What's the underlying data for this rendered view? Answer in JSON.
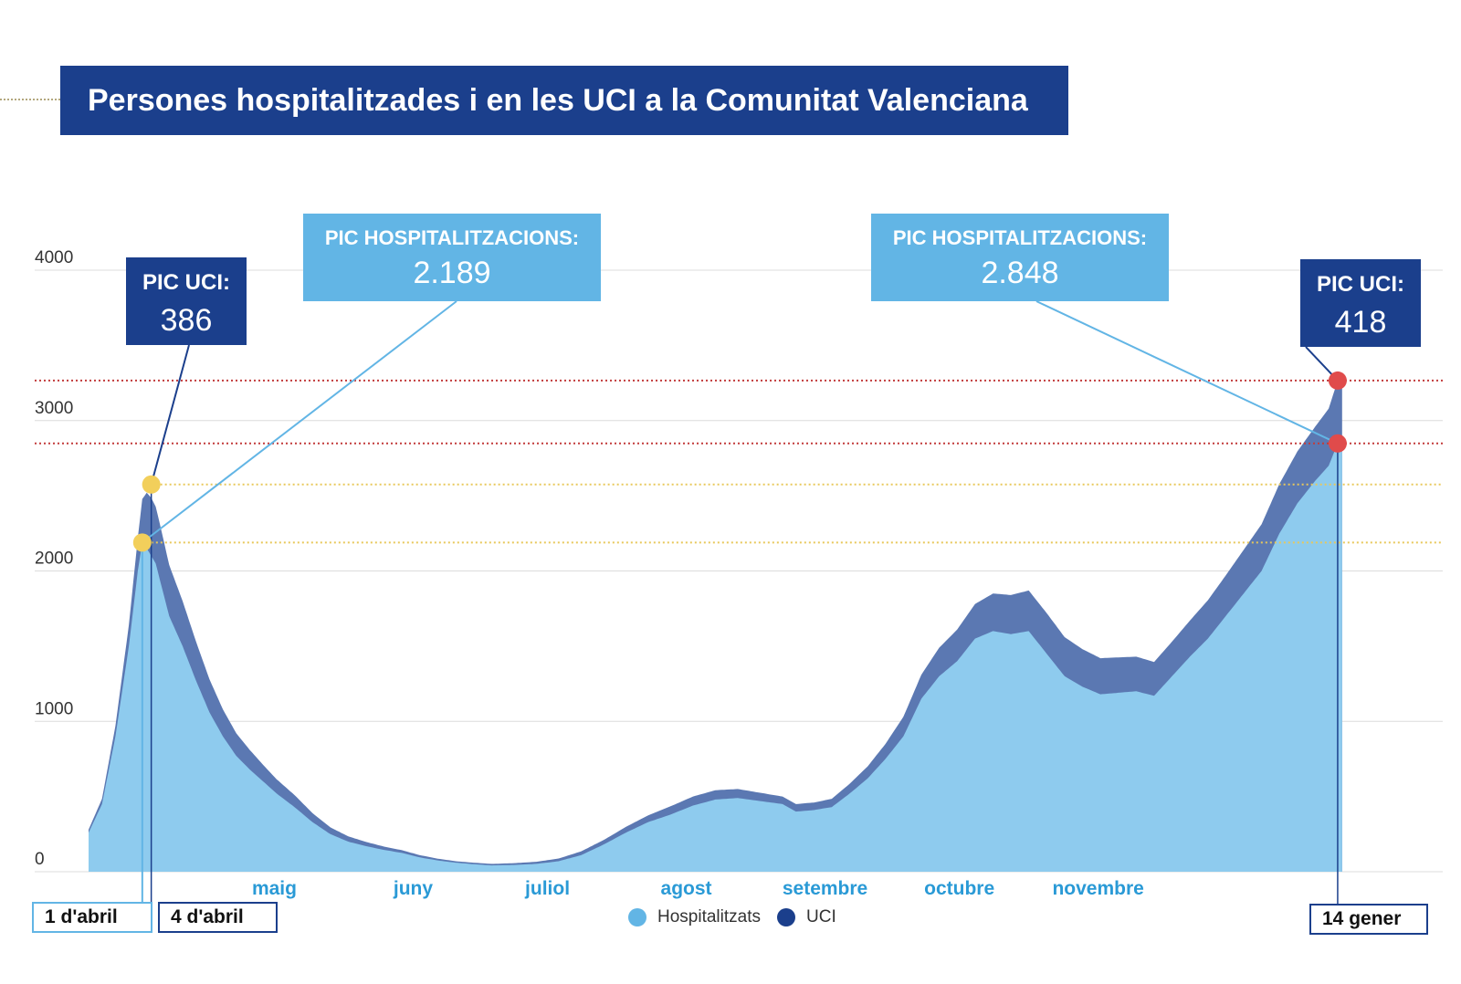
{
  "title": "Persones hospitalitzades i en les UCI a la Comunitat Valenciana",
  "colors": {
    "hospitalitzats": "#8ecbee",
    "uci": "#5b78b2",
    "title_bg": "#1b3f8c",
    "hosp_box": "#62b5e5",
    "peak_red": "#e04b4b",
    "peak_yellow": "#f2cf5b"
  },
  "chart_data": {
    "type": "area",
    "title": "Persones hospitalitzades i en les UCI a la Comunitat Valenciana",
    "ylim": [
      0,
      4000
    ],
    "yticks": [
      0,
      1000,
      2000,
      3000,
      4000
    ],
    "ytick_labels": [
      "0",
      "1000",
      "2000",
      "3000",
      "4000"
    ],
    "months": [
      "maig",
      "juny",
      "juliol",
      "agost",
      "setembre",
      "octubre",
      "novembre"
    ],
    "x_unit": "day index from 2020-03-21 (day 0) to 2021-01-14 (day 299)",
    "month_days": [
      41.5,
      72.5,
      102.5,
      133.5,
      164.5,
      194.5,
      225.5
    ],
    "series": [
      {
        "name": "Hospitalitzats",
        "color": "#8ecbee",
        "points": [
          [
            0,
            260
          ],
          [
            3,
            450
          ],
          [
            6,
            900
          ],
          [
            9,
            1500
          ],
          [
            11,
            2000
          ],
          [
            12,
            2189
          ],
          [
            13,
            2150
          ],
          [
            15,
            2050
          ],
          [
            18,
            1700
          ],
          [
            21,
            1500
          ],
          [
            24,
            1270
          ],
          [
            27,
            1060
          ],
          [
            30,
            900
          ],
          [
            33,
            770
          ],
          [
            36,
            680
          ],
          [
            39,
            600
          ],
          [
            42,
            520
          ],
          [
            46,
            430
          ],
          [
            50,
            330
          ],
          [
            54,
            250
          ],
          [
            58,
            200
          ],
          [
            62,
            170
          ],
          [
            66,
            145
          ],
          [
            70,
            125
          ],
          [
            74,
            95
          ],
          [
            78,
            75
          ],
          [
            82,
            60
          ],
          [
            86,
            50
          ],
          [
            90,
            42
          ],
          [
            95,
            45
          ],
          [
            100,
            52
          ],
          [
            105,
            70
          ],
          [
            110,
            110
          ],
          [
            115,
            180
          ],
          [
            120,
            260
          ],
          [
            125,
            330
          ],
          [
            130,
            380
          ],
          [
            135,
            440
          ],
          [
            140,
            480
          ],
          [
            145,
            490
          ],
          [
            150,
            470
          ],
          [
            155,
            450
          ],
          [
            158,
            400
          ],
          [
            162,
            410
          ],
          [
            166,
            430
          ],
          [
            170,
            520
          ],
          [
            174,
            620
          ],
          [
            178,
            750
          ],
          [
            182,
            900
          ],
          [
            186,
            1150
          ],
          [
            190,
            1300
          ],
          [
            194,
            1400
          ],
          [
            198,
            1550
          ],
          [
            202,
            1600
          ],
          [
            206,
            1580
          ],
          [
            210,
            1600
          ],
          [
            214,
            1450
          ],
          [
            218,
            1300
          ],
          [
            222,
            1230
          ],
          [
            226,
            1180
          ],
          [
            230,
            1190
          ],
          [
            234,
            1200
          ],
          [
            238,
            1170
          ],
          [
            242,
            1300
          ],
          [
            246,
            1430
          ],
          [
            250,
            1550
          ],
          [
            254,
            1700
          ],
          [
            258,
            1850
          ],
          [
            262,
            2000
          ],
          [
            266,
            2250
          ],
          [
            270,
            2450
          ],
          [
            274,
            2600
          ],
          [
            277,
            2700
          ],
          [
            279,
            2848
          ],
          [
            280,
            2900
          ]
        ]
      },
      {
        "name": "UCI",
        "color": "#5b78b2",
        "points": [
          [
            0,
            20
          ],
          [
            3,
            35
          ],
          [
            6,
            70
          ],
          [
            9,
            140
          ],
          [
            11,
            220
          ],
          [
            12,
            290
          ],
          [
            13,
            370
          ],
          [
            14,
            386
          ],
          [
            16,
            370
          ],
          [
            18,
            340
          ],
          [
            21,
            300
          ],
          [
            24,
            260
          ],
          [
            27,
            220
          ],
          [
            30,
            180
          ],
          [
            33,
            150
          ],
          [
            36,
            130
          ],
          [
            39,
            110
          ],
          [
            42,
            95
          ],
          [
            46,
            80
          ],
          [
            50,
            60
          ],
          [
            54,
            45
          ],
          [
            58,
            35
          ],
          [
            62,
            28
          ],
          [
            66,
            22
          ],
          [
            70,
            18
          ],
          [
            74,
            15
          ],
          [
            78,
            12
          ],
          [
            82,
            10
          ],
          [
            86,
            10
          ],
          [
            90,
            10
          ],
          [
            95,
            12
          ],
          [
            100,
            14
          ],
          [
            105,
            18
          ],
          [
            110,
            25
          ],
          [
            115,
            30
          ],
          [
            120,
            38
          ],
          [
            125,
            45
          ],
          [
            130,
            55
          ],
          [
            135,
            60
          ],
          [
            140,
            62
          ],
          [
            145,
            60
          ],
          [
            150,
            55
          ],
          [
            155,
            50
          ],
          [
            158,
            50
          ],
          [
            162,
            50
          ],
          [
            166,
            55
          ],
          [
            170,
            65
          ],
          [
            174,
            80
          ],
          [
            178,
            100
          ],
          [
            182,
            130
          ],
          [
            186,
            160
          ],
          [
            190,
            190
          ],
          [
            194,
            210
          ],
          [
            198,
            230
          ],
          [
            202,
            250
          ],
          [
            206,
            260
          ],
          [
            210,
            270
          ],
          [
            214,
            270
          ],
          [
            218,
            260
          ],
          [
            222,
            250
          ],
          [
            226,
            240
          ],
          [
            230,
            235
          ],
          [
            234,
            230
          ],
          [
            238,
            225
          ],
          [
            242,
            230
          ],
          [
            246,
            240
          ],
          [
            250,
            255
          ],
          [
            254,
            270
          ],
          [
            258,
            290
          ],
          [
            262,
            310
          ],
          [
            266,
            330
          ],
          [
            270,
            345
          ],
          [
            274,
            360
          ],
          [
            277,
            380
          ],
          [
            279,
            418
          ],
          [
            280,
            410
          ]
        ]
      }
    ],
    "peaks": [
      {
        "label": "PIC UCI:",
        "value": "386",
        "day": 14,
        "total": 2575
      },
      {
        "label": "PIC HOSPITALITZACIONS:",
        "value": "2.189",
        "day": 12,
        "total": 2189
      },
      {
        "label": "PIC HOSPITALITZACIONS:",
        "value": "2.848",
        "day": 279,
        "total": 2848
      },
      {
        "label": "PIC UCI:",
        "value": "418",
        "day": 279,
        "total": 3266
      }
    ],
    "date_markers": [
      "1 d'abril",
      "4  d'abril",
      "14 gener"
    ],
    "legend": [
      "Hospitalitzats",
      "UCI"
    ]
  }
}
